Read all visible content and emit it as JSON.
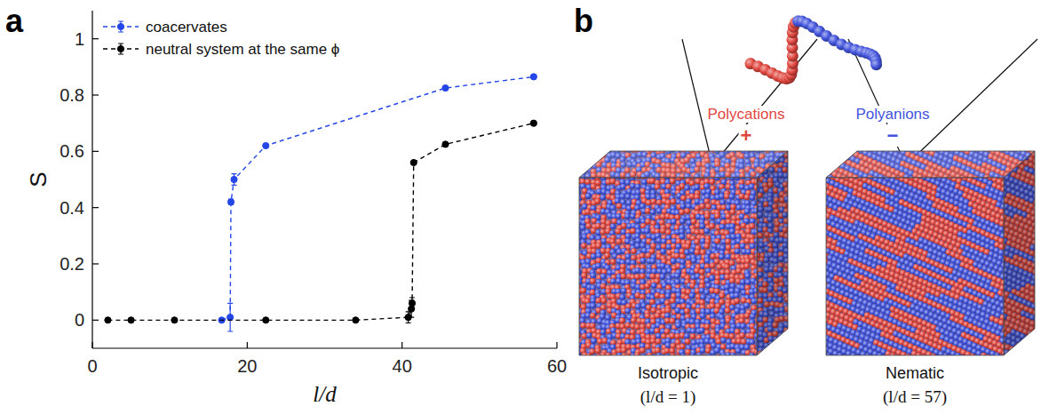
{
  "chart_data": {
    "type": "line",
    "x_label": "l/d",
    "y_label": "S",
    "xlim": [
      0,
      60
    ],
    "xticks": [
      0,
      20,
      40,
      60
    ],
    "ylim": [
      -0.1,
      1.1
    ],
    "yticks": [
      0,
      0.2,
      0.4,
      0.6,
      0.8,
      1
    ],
    "grid": false,
    "legend": "upper left",
    "series": [
      {
        "name": "coacervates",
        "color": "#2446e6",
        "marker": "circle",
        "line_style": "dashed",
        "x": [
          16.7,
          17.8,
          17.9,
          18.3,
          22.4,
          45.6,
          57.0
        ],
        "values": [
          0.0,
          0.01,
          0.42,
          0.5,
          0.62,
          0.825,
          0.865
        ],
        "errors": [
          0.005,
          0.05,
          0.01,
          0.02,
          0.005,
          0.005,
          0.005
        ]
      },
      {
        "name": "neutral system at the same ϕ",
        "color": "#000000",
        "marker": "circle",
        "line_style": "dashed",
        "x": [
          2.0,
          5.0,
          10.6,
          22.4,
          34.0,
          40.8,
          41.2,
          41.3,
          41.5,
          45.6,
          57.0
        ],
        "values": [
          0.0,
          0.0,
          0.0,
          0.0,
          0.0,
          0.01,
          0.04,
          0.06,
          0.56,
          0.625,
          0.7
        ],
        "errors": [
          0.003,
          0.003,
          0.003,
          0.003,
          0.005,
          0.02,
          0.03,
          0.02,
          0.005,
          0.005,
          0.005
        ]
      }
    ]
  },
  "panel_labels": [
    "a",
    "b"
  ],
  "diagram": {
    "species": [
      {
        "label": "Polycations",
        "sign": "+",
        "color": "#e0473f"
      },
      {
        "label": "Polyanions",
        "sign": "−",
        "color": "#4254dc"
      }
    ],
    "boxes": [
      {
        "phase": "Isotropic",
        "condition": "(l/d = 1)"
      },
      {
        "phase": "Nematic",
        "condition": "(l/d = 57)"
      }
    ]
  }
}
